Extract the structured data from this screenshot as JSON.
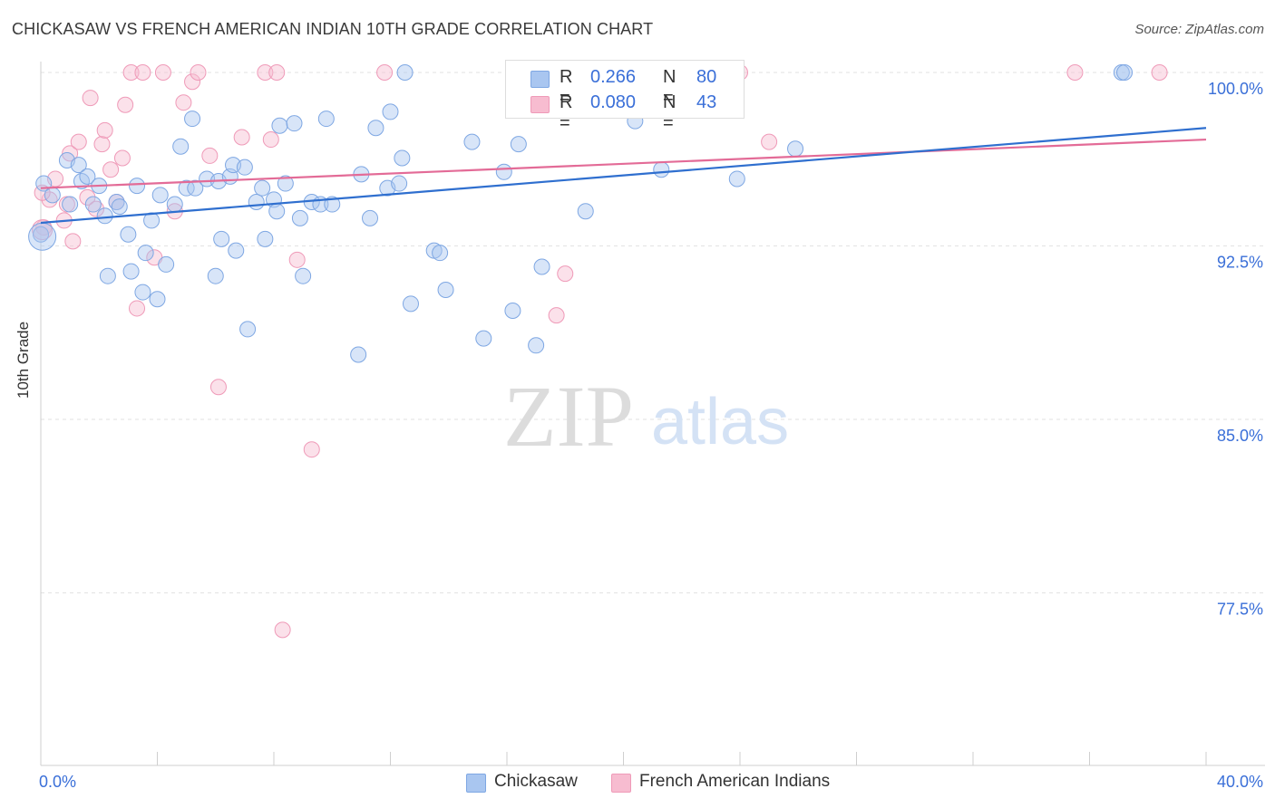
{
  "header": {
    "title": "CHICKASAW VS FRENCH AMERICAN INDIAN 10TH GRADE CORRELATION CHART",
    "source": "Source: ZipAtlas.com"
  },
  "watermark": {
    "zip": "ZIP",
    "atlas": "atlas"
  },
  "legend": {
    "r_label": "R =",
    "n_label": "N =",
    "series": [
      {
        "r": "0.266",
        "n": "80"
      },
      {
        "r": "0.080",
        "n": "43"
      }
    ]
  },
  "bottom_legend": [
    "Chickasaw",
    "French American Indians"
  ],
  "chart_data": {
    "type": "scatter",
    "title": "CHICKASAW VS FRENCH AMERICAN INDIAN 10TH GRADE CORRELATION CHART",
    "ylabel": "10th Grade",
    "xlabel": "",
    "xlim": [
      0,
      40
    ],
    "ylim": [
      70,
      100.6
    ],
    "x_tick_labels": [
      "0.0%",
      "40.0%"
    ],
    "y_ticks": [
      {
        "value": 100.0,
        "label": "100.0%"
      },
      {
        "value": 92.5,
        "label": "92.5%"
      },
      {
        "value": 85.0,
        "label": "85.0%"
      },
      {
        "value": 77.5,
        "label": "77.5%"
      }
    ],
    "grid": true,
    "colors": {
      "chickasaw_fill": "#a9c6f0",
      "chickasaw_stroke": "#7ea7e3",
      "chickasaw_line": "#2f6fcf",
      "french_fill": "#f7bcd0",
      "french_stroke": "#ef9ab8",
      "french_line": "#e36b97",
      "tick_label": "#3a6fd8"
    },
    "series": [
      {
        "name": "Chickasaw",
        "R": 0.266,
        "N": 80,
        "trend": [
          [
            0,
            93.5
          ],
          [
            40,
            97.6
          ]
        ],
        "points": [
          [
            0.0,
            93.0
          ],
          [
            0.1,
            95.2
          ],
          [
            0.4,
            94.7
          ],
          [
            0.9,
            96.2
          ],
          [
            1.0,
            94.3
          ],
          [
            1.3,
            96.0
          ],
          [
            1.4,
            95.3
          ],
          [
            1.6,
            95.5
          ],
          [
            1.8,
            94.3
          ],
          [
            2.0,
            95.1
          ],
          [
            2.2,
            93.8
          ],
          [
            2.3,
            91.2
          ],
          [
            2.6,
            94.4
          ],
          [
            2.7,
            94.2
          ],
          [
            3.0,
            93.0
          ],
          [
            3.1,
            91.4
          ],
          [
            3.3,
            95.1
          ],
          [
            3.5,
            90.5
          ],
          [
            3.6,
            92.2
          ],
          [
            3.8,
            93.6
          ],
          [
            4.0,
            90.2
          ],
          [
            4.1,
            94.7
          ],
          [
            4.3,
            91.7
          ],
          [
            4.6,
            94.3
          ],
          [
            4.8,
            96.8
          ],
          [
            5.0,
            95.0
          ],
          [
            5.2,
            98.0
          ],
          [
            5.3,
            95.0
          ],
          [
            5.7,
            95.4
          ],
          [
            6.0,
            91.2
          ],
          [
            6.1,
            95.3
          ],
          [
            6.2,
            92.8
          ],
          [
            6.5,
            95.5
          ],
          [
            6.6,
            96.0
          ],
          [
            6.7,
            92.3
          ],
          [
            7.0,
            95.9
          ],
          [
            7.1,
            88.9
          ],
          [
            7.4,
            94.4
          ],
          [
            7.6,
            95.0
          ],
          [
            7.7,
            92.8
          ],
          [
            8.0,
            94.5
          ],
          [
            8.1,
            94.0
          ],
          [
            8.2,
            97.7
          ],
          [
            8.4,
            95.2
          ],
          [
            8.7,
            97.8
          ],
          [
            8.9,
            93.7
          ],
          [
            9.0,
            91.2
          ],
          [
            9.3,
            94.4
          ],
          [
            9.6,
            94.3
          ],
          [
            9.8,
            98.0
          ],
          [
            10.0,
            94.3
          ],
          [
            10.9,
            87.8
          ],
          [
            11.0,
            95.6
          ],
          [
            11.3,
            93.7
          ],
          [
            11.5,
            97.6
          ],
          [
            11.9,
            95.0
          ],
          [
            12.0,
            98.3
          ],
          [
            12.3,
            95.2
          ],
          [
            12.4,
            96.3
          ],
          [
            12.5,
            100.0
          ],
          [
            12.7,
            90.0
          ],
          [
            13.5,
            92.3
          ],
          [
            13.7,
            92.2
          ],
          [
            13.9,
            90.6
          ],
          [
            14.8,
            97.0
          ],
          [
            15.2,
            88.5
          ],
          [
            15.9,
            95.7
          ],
          [
            16.2,
            89.7
          ],
          [
            16.4,
            96.9
          ],
          [
            17.0,
            88.2
          ],
          [
            17.2,
            91.6
          ],
          [
            18.5,
            100.0
          ],
          [
            18.7,
            94.0
          ],
          [
            19.2,
            100.0
          ],
          [
            20.4,
            97.9
          ],
          [
            21.3,
            95.8
          ],
          [
            23.9,
            95.4
          ],
          [
            25.9,
            96.7
          ],
          [
            37.1,
            100.0
          ],
          [
            37.2,
            100.0
          ]
        ]
      },
      {
        "name": "French American Indians",
        "R": 0.08,
        "N": 43,
        "trend": [
          [
            0,
            95.0
          ],
          [
            40,
            97.1
          ]
        ],
        "points": [
          [
            0.1,
            93.3
          ],
          [
            0.3,
            94.5
          ],
          [
            0.5,
            95.4
          ],
          [
            0.8,
            93.6
          ],
          [
            0.9,
            94.3
          ],
          [
            1.0,
            96.5
          ],
          [
            1.1,
            92.7
          ],
          [
            1.3,
            97.0
          ],
          [
            1.6,
            94.6
          ],
          [
            1.7,
            98.9
          ],
          [
            1.9,
            94.1
          ],
          [
            2.1,
            96.9
          ],
          [
            2.2,
            97.5
          ],
          [
            2.4,
            95.8
          ],
          [
            2.6,
            94.4
          ],
          [
            2.8,
            96.3
          ],
          [
            2.9,
            98.6
          ],
          [
            3.1,
            100.0
          ],
          [
            3.3,
            89.8
          ],
          [
            3.5,
            100.0
          ],
          [
            3.9,
            92.0
          ],
          [
            4.2,
            100.0
          ],
          [
            4.6,
            94.0
          ],
          [
            4.9,
            98.7
          ],
          [
            5.2,
            99.6
          ],
          [
            5.4,
            100.0
          ],
          [
            5.8,
            96.4
          ],
          [
            6.1,
            86.4
          ],
          [
            6.9,
            97.2
          ],
          [
            7.7,
            100.0
          ],
          [
            7.9,
            97.1
          ],
          [
            8.1,
            100.0
          ],
          [
            8.3,
            75.9
          ],
          [
            8.8,
            91.9
          ],
          [
            9.3,
            83.7
          ],
          [
            11.8,
            100.0
          ],
          [
            17.7,
            89.5
          ],
          [
            18.0,
            91.3
          ],
          [
            24.0,
            100.0
          ],
          [
            25.0,
            97.0
          ],
          [
            35.5,
            100.0
          ],
          [
            38.4,
            100.0
          ],
          [
            0.05,
            94.8
          ]
        ]
      }
    ]
  }
}
